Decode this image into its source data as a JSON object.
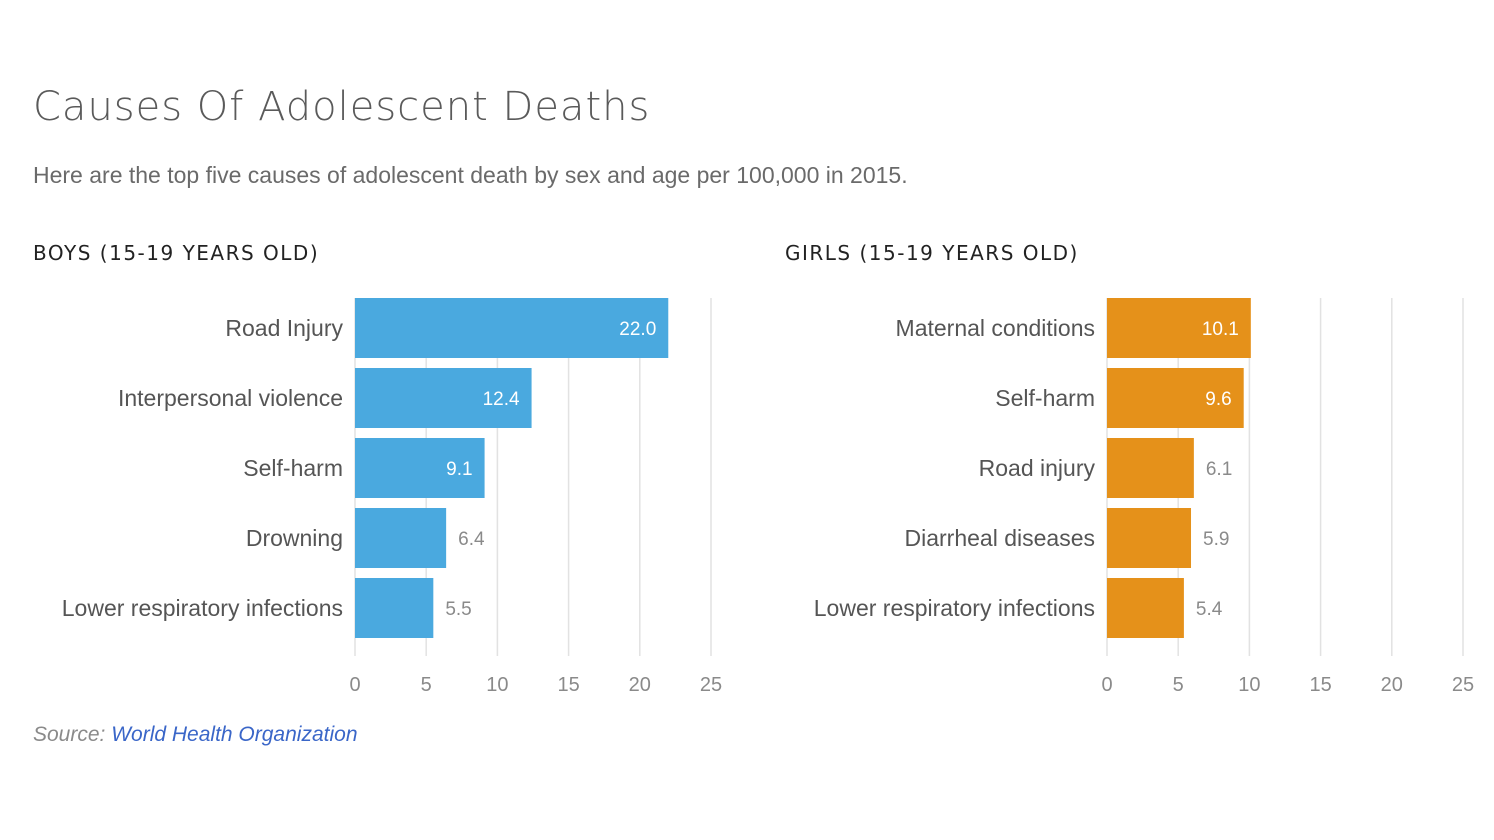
{
  "title": "Causes Of Adolescent Deaths",
  "subtitle": "Here are the top five causes of adolescent death by sex and age per 100,000 in 2015.",
  "source": {
    "prefix": "Source:",
    "link_text": "World Health Organization"
  },
  "colors": {
    "boys": "#4aa9df",
    "girls": "#e5911a",
    "grid": "#e2e2e2",
    "tick_text": "#8a8a8a",
    "label_text": "#555555",
    "value_text": "#8a8a8a",
    "inside_value_text": "#ffffff"
  },
  "chart_data": [
    {
      "type": "bar",
      "orientation": "horizontal",
      "title": "BOYS (15-19 YEARS OLD)",
      "categories": [
        "Road Injury",
        "Interpersonal violence",
        "Self-harm",
        "Drowning",
        "Lower respiratory infections"
      ],
      "values": [
        22.0,
        12.4,
        9.1,
        6.4,
        5.5
      ],
      "xlim": [
        0,
        25
      ],
      "xticks": [
        0,
        5,
        10,
        15,
        20,
        25
      ],
      "grid": true,
      "color": "#4aa9df"
    },
    {
      "type": "bar",
      "orientation": "horizontal",
      "title": "GIRLS (15-19 YEARS OLD)",
      "categories": [
        "Maternal conditions",
        "Self-harm",
        "Road injury",
        "Diarrheal diseases",
        "Lower respiratory infections"
      ],
      "values": [
        10.1,
        9.6,
        6.1,
        5.9,
        5.4
      ],
      "xlim": [
        0,
        25
      ],
      "xticks": [
        0,
        5,
        10,
        15,
        20,
        25
      ],
      "grid": true,
      "color": "#e5911a"
    }
  ]
}
